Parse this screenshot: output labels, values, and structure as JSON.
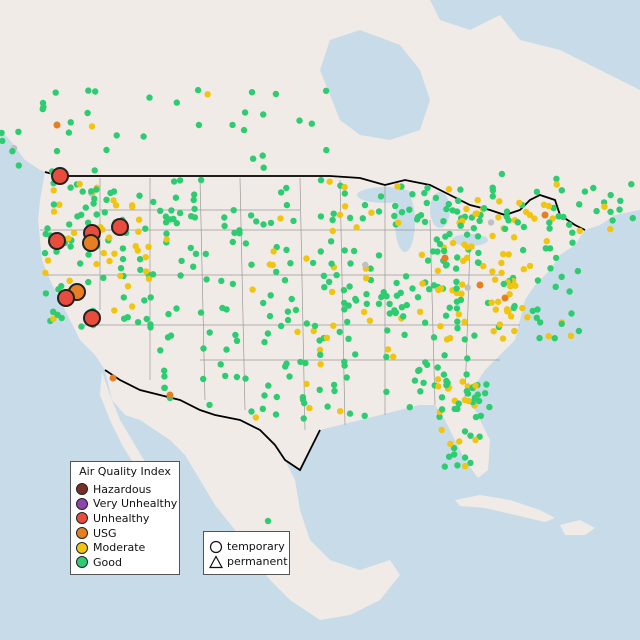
{
  "legend": {
    "title": "Air Quality Index",
    "categories": [
      {
        "label": "Hazardous",
        "color": "#7b2d26"
      },
      {
        "label": "Very Unhealthy",
        "color": "#8e44ad"
      },
      {
        "label": "Unhealthy",
        "color": "#e74c3c"
      },
      {
        "label": "USG",
        "color": "#e67e22"
      },
      {
        "label": "Moderate",
        "color": "#f1c40f"
      },
      {
        "label": "Good",
        "color": "#2ecc71"
      }
    ]
  },
  "shape_legend": {
    "temporary": "temporary",
    "permanent": "permanent"
  },
  "colors": {
    "water": "#c8dbe8",
    "land": "#f0ebe6",
    "state_lines": "#9a9a9a",
    "border": "#000000"
  }
}
